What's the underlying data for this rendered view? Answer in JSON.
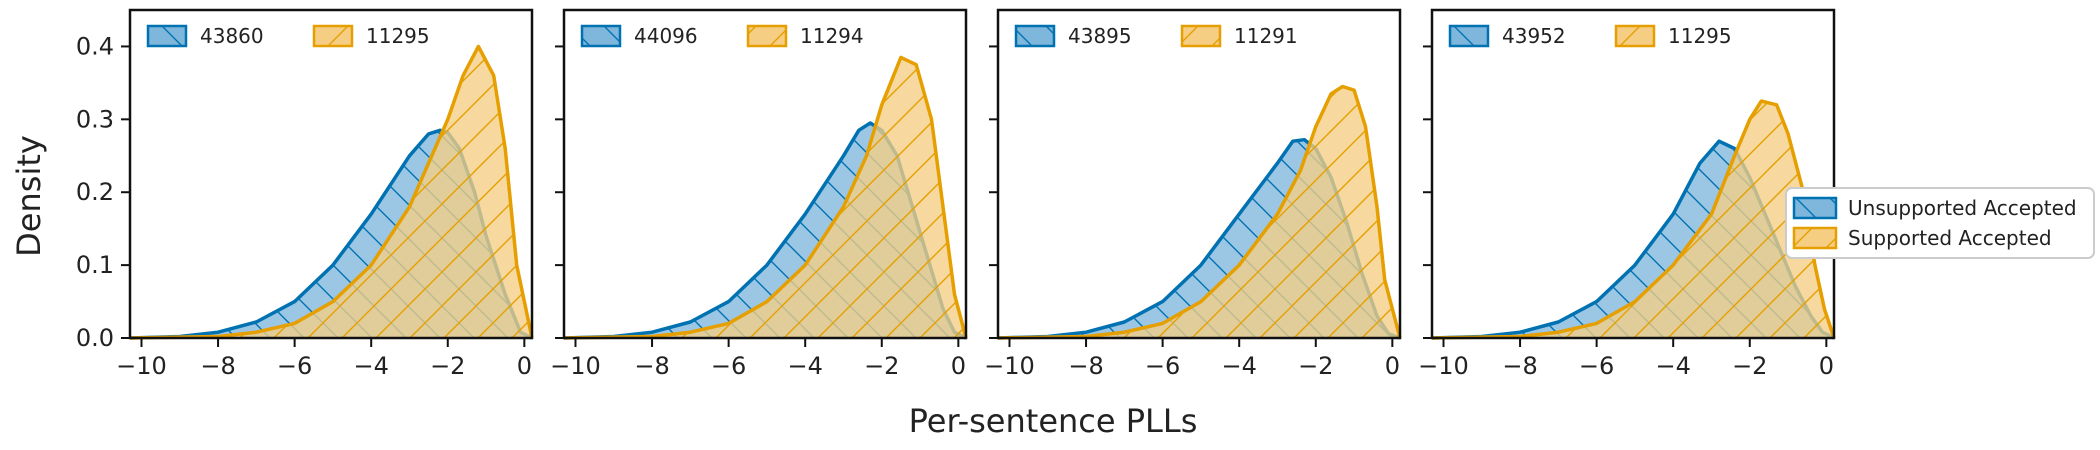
{
  "chart_data": {
    "type": "area",
    "xlabel": "Per-sentence PLLs",
    "ylabel": "Density",
    "xlim": [
      -10.3,
      0.2
    ],
    "ylim": [
      0,
      0.45
    ],
    "xticks": [
      -10,
      -8,
      -6,
      -4,
      -2,
      0
    ],
    "yticks": [
      0.0,
      0.1,
      0.2,
      0.3,
      0.4
    ],
    "grid": false,
    "series_styles": [
      {
        "color": "#0072b2",
        "fill": "#7fb6dc",
        "hatch": "backslash"
      },
      {
        "color": "#e69f00",
        "fill": "#f5ce84",
        "hatch": "slash"
      }
    ],
    "legend": {
      "placement": "right",
      "entries": [
        "Unsupported Accepted",
        "Supported Accepted"
      ]
    },
    "panels": [
      {
        "legend": [
          "43860",
          "11295"
        ],
        "series": [
          {
            "x": [
              -10.3,
              -9,
              -8,
              -7,
              -6,
              -5,
              -4,
              -3,
              -2.5,
              -2.2,
              -2,
              -1.7,
              -1.3,
              -1,
              -0.5,
              -0.1,
              0.2
            ],
            "y": [
              0,
              0.002,
              0.008,
              0.022,
              0.05,
              0.1,
              0.17,
              0.25,
              0.28,
              0.285,
              0.282,
              0.26,
              0.2,
              0.14,
              0.06,
              0.008,
              0
            ]
          },
          {
            "x": [
              -10.3,
              -8,
              -7,
              -6,
              -5,
              -4,
              -3,
              -2.5,
              -2,
              -1.6,
              -1.2,
              -0.8,
              -0.5,
              -0.2,
              0.2
            ],
            "y": [
              0,
              0.002,
              0.008,
              0.02,
              0.05,
              0.1,
              0.18,
              0.24,
              0.3,
              0.36,
              0.4,
              0.36,
              0.26,
              0.1,
              0
            ]
          }
        ]
      },
      {
        "legend": [
          "44096",
          "11294"
        ],
        "series": [
          {
            "x": [
              -10.3,
              -9,
              -8,
              -7,
              -6,
              -5,
              -4,
              -3,
              -2.6,
              -2.3,
              -2,
              -1.6,
              -1.2,
              -0.8,
              -0.4,
              -0.1,
              0.2
            ],
            "y": [
              0,
              0.002,
              0.008,
              0.022,
              0.05,
              0.1,
              0.17,
              0.25,
              0.285,
              0.295,
              0.285,
              0.25,
              0.18,
              0.11,
              0.04,
              0.008,
              0
            ]
          },
          {
            "x": [
              -10.3,
              -8,
              -7,
              -6,
              -5,
              -4,
              -3,
              -2.4,
              -2,
              -1.5,
              -1.1,
              -0.7,
              -0.4,
              -0.1,
              0.2
            ],
            "y": [
              0,
              0.002,
              0.008,
              0.02,
              0.05,
              0.1,
              0.18,
              0.25,
              0.32,
              0.385,
              0.375,
              0.3,
              0.18,
              0.06,
              0
            ]
          }
        ]
      },
      {
        "legend": [
          "43895",
          "11291"
        ],
        "series": [
          {
            "x": [
              -10.3,
              -9,
              -8,
              -7,
              -6,
              -5,
              -4,
              -3,
              -2.6,
              -2.3,
              -2,
              -1.6,
              -1.2,
              -0.8,
              -0.4,
              -0.1,
              0.2
            ],
            "y": [
              0,
              0.002,
              0.008,
              0.022,
              0.05,
              0.1,
              0.17,
              0.24,
              0.27,
              0.272,
              0.26,
              0.22,
              0.16,
              0.09,
              0.03,
              0.006,
              0
            ]
          },
          {
            "x": [
              -10.3,
              -8,
              -7,
              -6,
              -5,
              -4,
              -3,
              -2.4,
              -2,
              -1.6,
              -1.3,
              -1,
              -0.7,
              -0.4,
              -0.2,
              0.2
            ],
            "y": [
              0,
              0.002,
              0.008,
              0.02,
              0.05,
              0.1,
              0.17,
              0.23,
              0.29,
              0.335,
              0.345,
              0.34,
              0.29,
              0.18,
              0.08,
              0
            ]
          }
        ]
      },
      {
        "legend": [
          "43952",
          "11295"
        ],
        "series": [
          {
            "x": [
              -10.3,
              -9,
              -8,
              -7,
              -6,
              -5,
              -4,
              -3.3,
              -2.8,
              -2.4,
              -2,
              -1.6,
              -1.2,
              -0.8,
              -0.4,
              -0.1,
              0.2
            ],
            "y": [
              0,
              0.002,
              0.008,
              0.022,
              0.05,
              0.1,
              0.17,
              0.24,
              0.27,
              0.26,
              0.22,
              0.17,
              0.12,
              0.07,
              0.03,
              0.008,
              0
            ]
          },
          {
            "x": [
              -10.3,
              -8,
              -7,
              -6,
              -5,
              -4,
              -3,
              -2.4,
              -2,
              -1.7,
              -1.3,
              -1,
              -0.6,
              -0.3,
              -0.05,
              0.2
            ],
            "y": [
              0,
              0.002,
              0.008,
              0.02,
              0.05,
              0.1,
              0.17,
              0.25,
              0.3,
              0.325,
              0.32,
              0.28,
              0.2,
              0.1,
              0.04,
              0
            ]
          }
        ]
      }
    ]
  }
}
